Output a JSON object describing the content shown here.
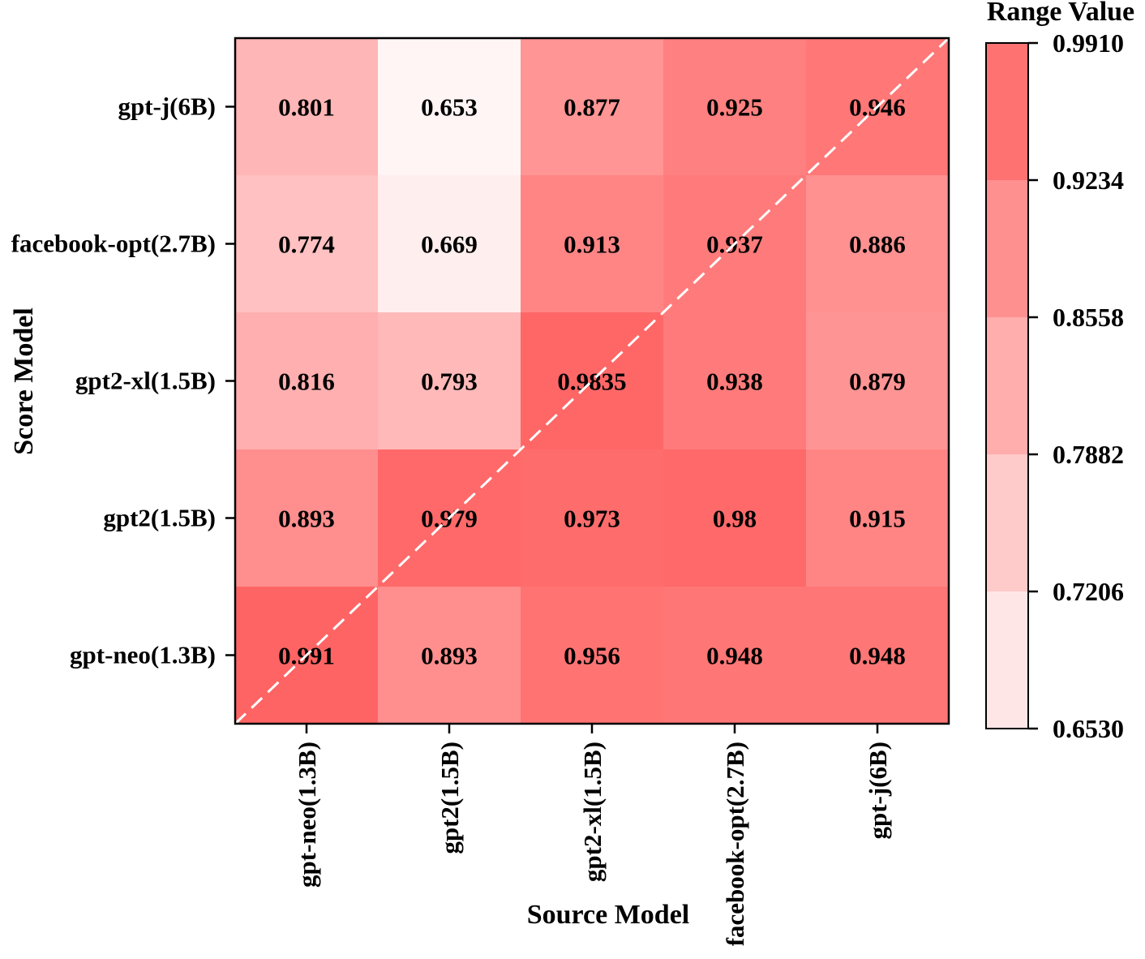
{
  "chart_data": {
    "type": "heatmap",
    "title": "",
    "xlabel": "Source Model",
    "ylabel": "Score Model",
    "x_categories": [
      "gpt-neo(1.3B)",
      "gpt2(1.5B)",
      "gpt2-xl(1.5B)",
      "facebook-opt(2.7B)",
      "gpt-j(6B)"
    ],
    "y_categories": [
      "gpt-j(6B)",
      "facebook-opt(2.7B)",
      "gpt2-xl(1.5B)",
      "gpt2(1.5B)",
      "gpt-neo(1.3B)"
    ],
    "values": [
      [
        0.801,
        0.653,
        0.877,
        0.925,
        0.946
      ],
      [
        0.774,
        0.669,
        0.913,
        0.937,
        0.886
      ],
      [
        0.816,
        0.793,
        0.9835,
        0.938,
        0.879
      ],
      [
        0.893,
        0.979,
        0.973,
        0.98,
        0.915
      ],
      [
        0.991,
        0.893,
        0.956,
        0.948,
        0.948
      ]
    ],
    "value_labels": [
      [
        "0.801",
        "0.653",
        "0.877",
        "0.925",
        "0.946"
      ],
      [
        "0.774",
        "0.669",
        "0.913",
        "0.937",
        "0.886"
      ],
      [
        "0.816",
        "0.793",
        "0.9835",
        "0.938",
        "0.879"
      ],
      [
        "0.893",
        "0.979",
        "0.973",
        "0.98",
        "0.915"
      ],
      [
        "0.991",
        "0.893",
        "0.956",
        "0.948",
        "0.948"
      ]
    ],
    "colorbar": {
      "title": "Range Value",
      "min": 0.653,
      "max": 0.991,
      "tick_labels": [
        "0.9910",
        "0.9234",
        "0.8558",
        "0.7882",
        "0.7206",
        "0.6530"
      ],
      "color_low": "#fff5f5",
      "color_high": "#ff6464"
    },
    "diagonal_line": true
  }
}
